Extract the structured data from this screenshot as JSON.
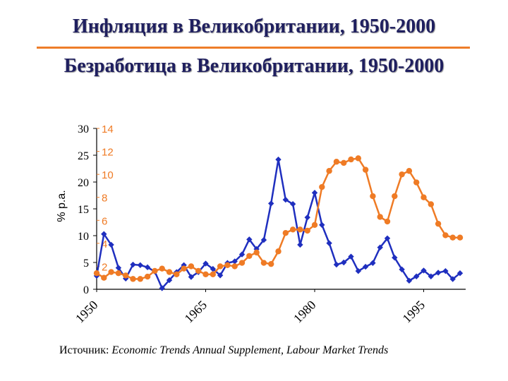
{
  "header": {
    "title_inflation": "Инфляция в Великобритании, 1950-2000",
    "title_unemployment": "Безработица в Великобритании, 1950-2000"
  },
  "source": {
    "label": "Источник:",
    "text": "Economic Trends Annual Supplement, Labour Market Trends"
  },
  "colors": {
    "inflation": "#1f2fbf",
    "unemployment": "#ef7b25",
    "accent_rule": "#ee7d2a"
  },
  "chart_data": {
    "type": "line",
    "title": "Инфляция в Великобритании, 1950-2000 / Безработица в Великобритании, 1950-2000",
    "ylabel": "% p.a.",
    "xlabel": "",
    "x_tick_labels": [
      "1950",
      "1965",
      "1980",
      "1995"
    ],
    "x_tick_years": [
      1950,
      1965,
      1980,
      1995
    ],
    "ylim_left": [
      0,
      30
    ],
    "yticks_left": [
      "0",
      "5",
      "10",
      "15",
      "20",
      "25",
      "30"
    ],
    "ylim_right": [
      0,
      14
    ],
    "yticks_right": [
      "2",
      "4",
      "6",
      "8",
      "10",
      "12",
      "14"
    ],
    "grid": false,
    "x": [
      1950,
      1951,
      1952,
      1953,
      1954,
      1955,
      1956,
      1957,
      1958,
      1959,
      1960,
      1961,
      1962,
      1963,
      1964,
      1965,
      1966,
      1967,
      1968,
      1969,
      1970,
      1971,
      1972,
      1973,
      1974,
      1975,
      1976,
      1977,
      1978,
      1979,
      1980,
      1981,
      1982,
      1983,
      1984,
      1985,
      1986,
      1987,
      1988,
      1989,
      1990,
      1991,
      1992,
      1993,
      1994,
      1995,
      1996,
      1997,
      1998,
      1999,
      2000
    ],
    "series": [
      {
        "name": "Инфляция",
        "axis": "left",
        "marker": "diamond",
        "values": [
          2.5,
          10.3,
          8.3,
          4.0,
          2.0,
          4.6,
          4.5,
          4.1,
          3.3,
          0.2,
          1.7,
          3.2,
          4.5,
          2.3,
          3.2,
          4.8,
          3.8,
          2.6,
          4.9,
          5.2,
          6.5,
          9.3,
          7.5,
          9.2,
          16.0,
          24.2,
          16.7,
          15.9,
          8.3,
          13.4,
          18.0,
          12.0,
          8.6,
          4.6,
          5.0,
          6.1,
          3.4,
          4.2,
          4.9,
          7.8,
          9.5,
          5.9,
          3.7,
          1.6,
          2.4,
          3.5,
          2.4,
          3.1,
          3.4,
          1.9,
          3.0
        ]
      },
      {
        "name": "Безработица",
        "axis": "right",
        "marker": "circle",
        "values": [
          1.4,
          1.0,
          1.5,
          1.4,
          1.2,
          0.9,
          0.9,
          1.1,
          1.6,
          1.8,
          1.5,
          1.3,
          1.8,
          2.0,
          1.6,
          1.3,
          1.3,
          2.0,
          2.1,
          2.0,
          2.3,
          2.9,
          3.2,
          2.3,
          2.2,
          3.3,
          4.9,
          5.2,
          5.2,
          5.1,
          5.6,
          8.9,
          10.3,
          11.1,
          11.0,
          11.3,
          11.4,
          10.4,
          8.1,
          6.3,
          5.9,
          8.1,
          10.0,
          10.3,
          9.3,
          8.0,
          7.4,
          5.7,
          4.7,
          4.5,
          4.5
        ]
      }
    ]
  }
}
